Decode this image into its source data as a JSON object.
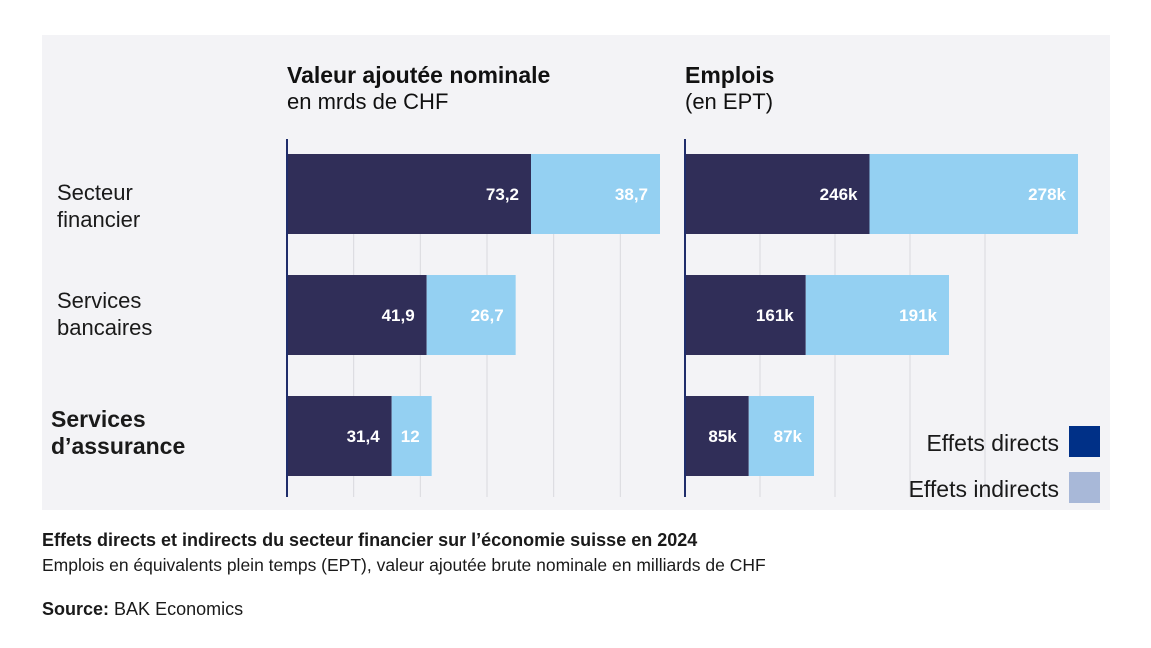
{
  "chart_data": {
    "type": "bar",
    "orientation": "horizontal",
    "stacked": true,
    "categories": [
      "Secteur\nfinancier",
      "Services\nbancaires",
      "Services\nd’assurance"
    ],
    "highlighted_category": 2,
    "colors": {
      "direct": "#302e58",
      "indirect": "#94d0f2",
      "legend_direct": "#003087",
      "legend_indirect": "#a8b8d8",
      "axis": "#1f2d6b",
      "grid": "#d9d9de",
      "panel": "#f3f3f6"
    },
    "legend": [
      {
        "label": "Effets directs",
        "key": "direct"
      },
      {
        "label": "Effets indirects",
        "key": "indirect"
      }
    ],
    "legend_position": "bottom-right",
    "panels": [
      {
        "id": "va",
        "title": "Valeur ajoutée nominale",
        "subtitle": "en mrds de CHF",
        "xlim": [
          0,
          120
        ],
        "grid_step": 20,
        "series": [
          {
            "name": "Effets directs",
            "key": "direct",
            "values": [
              73.2,
              41.9,
              31.4
            ],
            "labels": [
              "73,2",
              "41,9",
              "31,4"
            ]
          },
          {
            "name": "Effets indirects",
            "key": "indirect",
            "values": [
              38.7,
              26.7,
              12
            ],
            "labels": [
              "38,7",
              "26,7",
              "12"
            ]
          }
        ]
      },
      {
        "id": "emp",
        "title": "Emplois",
        "subtitle": "(en EPT)",
        "xlim": [
          0,
          600
        ],
        "grid_step": 100,
        "series": [
          {
            "name": "Effets directs",
            "key": "direct",
            "values": [
              246,
              161,
              85
            ],
            "labels": [
              "246k",
              "161k",
              "85k"
            ]
          },
          {
            "name": "Effets indirects",
            "key": "indirect",
            "values": [
              278,
              191,
              87
            ],
            "labels": [
              "278k",
              "191k",
              "87k"
            ]
          }
        ]
      }
    ]
  },
  "caption": {
    "title": "Effets directs et indirects du secteur financier sur l’économie suisse en 2024",
    "subtitle": "Emplois en équivalents plein temps (EPT), valeur ajoutée brute nominale en milliards de CHF"
  },
  "source": {
    "label": "Source:",
    "text": "BAK Economics"
  }
}
